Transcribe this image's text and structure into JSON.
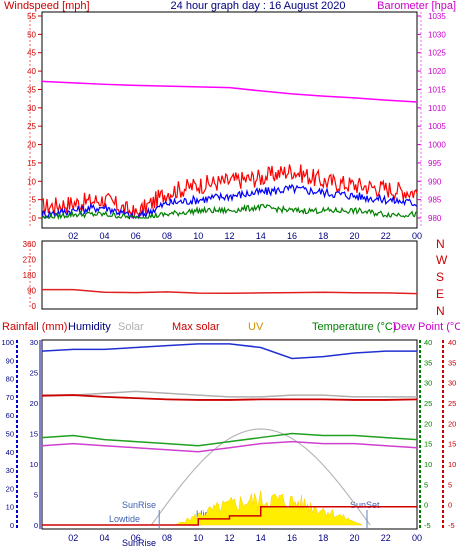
{
  "chart_data": [
    {
      "type": "line",
      "panel": "wind-barometer",
      "title": "24 hour graph day : 16 August 2020",
      "ylabel_left": "Windspeed [mph]",
      "ylabel_right": "Barometer [hpa]",
      "x_ticks": [
        "02",
        "04",
        "06",
        "08",
        "10",
        "12",
        "14",
        "16",
        "18",
        "20",
        "22",
        "00"
      ],
      "ylim_left": [
        0,
        55
      ],
      "yticks_left": [
        0,
        5,
        10,
        15,
        20,
        25,
        30,
        35,
        40,
        45,
        50,
        55
      ],
      "ylim_right": [
        980,
        1035
      ],
      "yticks_right": [
        980,
        985,
        990,
        995,
        1000,
        1005,
        1010,
        1015,
        1020,
        1025,
        1030,
        1035
      ],
      "x": [
        0,
        2,
        4,
        6,
        8,
        10,
        12,
        14,
        16,
        18,
        20,
        22,
        24
      ],
      "series": [
        {
          "key": "gust",
          "color": "#ff0000",
          "values": [
            3,
            4,
            5,
            1,
            7,
            9,
            10,
            11,
            13,
            10,
            9,
            8,
            7
          ]
        },
        {
          "key": "average",
          "color": "#0000ff",
          "values": [
            1,
            2,
            3,
            0,
            4,
            5,
            6,
            7,
            8,
            7,
            6,
            5,
            4
          ]
        },
        {
          "key": "low",
          "color": "#008000",
          "values": [
            0,
            1,
            1,
            0,
            1,
            2,
            2,
            3,
            2,
            2,
            2,
            1,
            1
          ]
        },
        {
          "key": "barometer",
          "color": "#ff00ff",
          "values": [
            1017.2,
            1016.8,
            1016.4,
            1016.1,
            1015.9,
            1015.7,
            1015.5,
            1014.6,
            1013.8,
            1013.2,
            1012.7,
            1012.1,
            1011.6
          ]
        }
      ]
    },
    {
      "type": "line",
      "panel": "wind-direction",
      "yticks_left": [
        0,
        90,
        180,
        270,
        360
      ],
      "ylim": [
        0,
        360
      ],
      "compass": [
        "N",
        "W",
        "S",
        "E",
        "N"
      ],
      "x": [
        0,
        2,
        4,
        6,
        8,
        10,
        12,
        14,
        16,
        18,
        20,
        22,
        24
      ],
      "series": [
        {
          "key": "direction",
          "color": "#e02020",
          "values": [
            95,
            95,
            80,
            78,
            82,
            75,
            74,
            76,
            78,
            80,
            77,
            76,
            72
          ]
        }
      ]
    },
    {
      "type": "line",
      "panel": "rain-humidity-temp",
      "legend": [
        "Rainfall (mm)",
        "Humidity",
        "Solar",
        "Max solar",
        "UV",
        "Temperature (°C)",
        "Dew Point (°C)"
      ],
      "legend_colors": [
        "#ff0000",
        "#0000a0",
        "#c0c0c0",
        "#cc0000",
        "#e0a000",
        "#008000",
        "#ff00ff"
      ],
      "yticks_rain": [
        0,
        5,
        10,
        15,
        20,
        25,
        30
      ],
      "yticks_humidity": [
        0,
        10,
        20,
        30,
        40,
        50,
        60,
        70,
        80,
        90,
        100
      ],
      "yticks_temp": [
        -5,
        0,
        5,
        10,
        15,
        20,
        25,
        30,
        35,
        40
      ],
      "ylim_temp": [
        -5,
        40
      ],
      "x": [
        0,
        2,
        4,
        6,
        8,
        10,
        12,
        14,
        16,
        18,
        20,
        22,
        24
      ],
      "series": [
        {
          "key": "humidity",
          "color": "#2030d0",
          "values": [
            95,
            96,
            96,
            97,
            98,
            99,
            99,
            97,
            91,
            92,
            94,
            95,
            95
          ]
        },
        {
          "key": "solar",
          "color": "#b0b0b0",
          "values": [
            71,
            71,
            72,
            73,
            72,
            71,
            70,
            70,
            71,
            71,
            70,
            70,
            70
          ]
        },
        {
          "key": "temperature",
          "color": "#20a020",
          "values": [
            16.5,
            17,
            16,
            15.5,
            15,
            14.5,
            15.5,
            16.5,
            17.5,
            17,
            17,
            16.5,
            16
          ]
        },
        {
          "key": "dew_point",
          "color": "#d040d0",
          "values": [
            14.5,
            15,
            14.5,
            14,
            13.5,
            13,
            14,
            15,
            15.5,
            15,
            15,
            14.5,
            14
          ]
        },
        {
          "key": "max_solar",
          "color": "#cc0000",
          "values": [
            21.2,
            21.3,
            21,
            20.8,
            20.6,
            20.5,
            20.5,
            20.6,
            20.6,
            20.6,
            20.5,
            20.5,
            20.6
          ]
        },
        {
          "key": "rain",
          "color": "#d00000",
          "values": [
            0,
            0,
            0,
            0,
            0,
            1,
            1.5,
            3,
            3,
            3,
            3,
            3,
            3
          ]
        }
      ],
      "annotations": {
        "sunrise": "SunRise",
        "sunset": "SunSet",
        "lowtide": "Lowtide",
        "hightide": "Hightide",
        "sunrise_bottom": "SunRise"
      }
    }
  ]
}
